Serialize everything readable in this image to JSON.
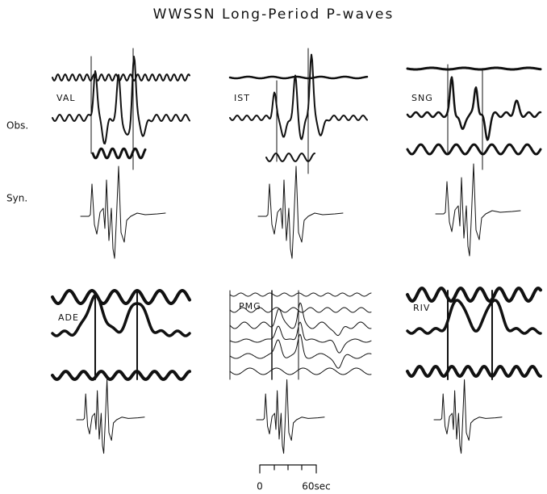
{
  "title": "WWSSN Long-Period P-waves",
  "row_labels": {
    "observed": "Obs.",
    "synthetic": "Syn."
  },
  "stations": [
    "VAL",
    "IST",
    "SNG",
    "ADE",
    "PMG",
    "RIV"
  ],
  "scale_bar": {
    "start": "0",
    "end": "60sec"
  }
}
